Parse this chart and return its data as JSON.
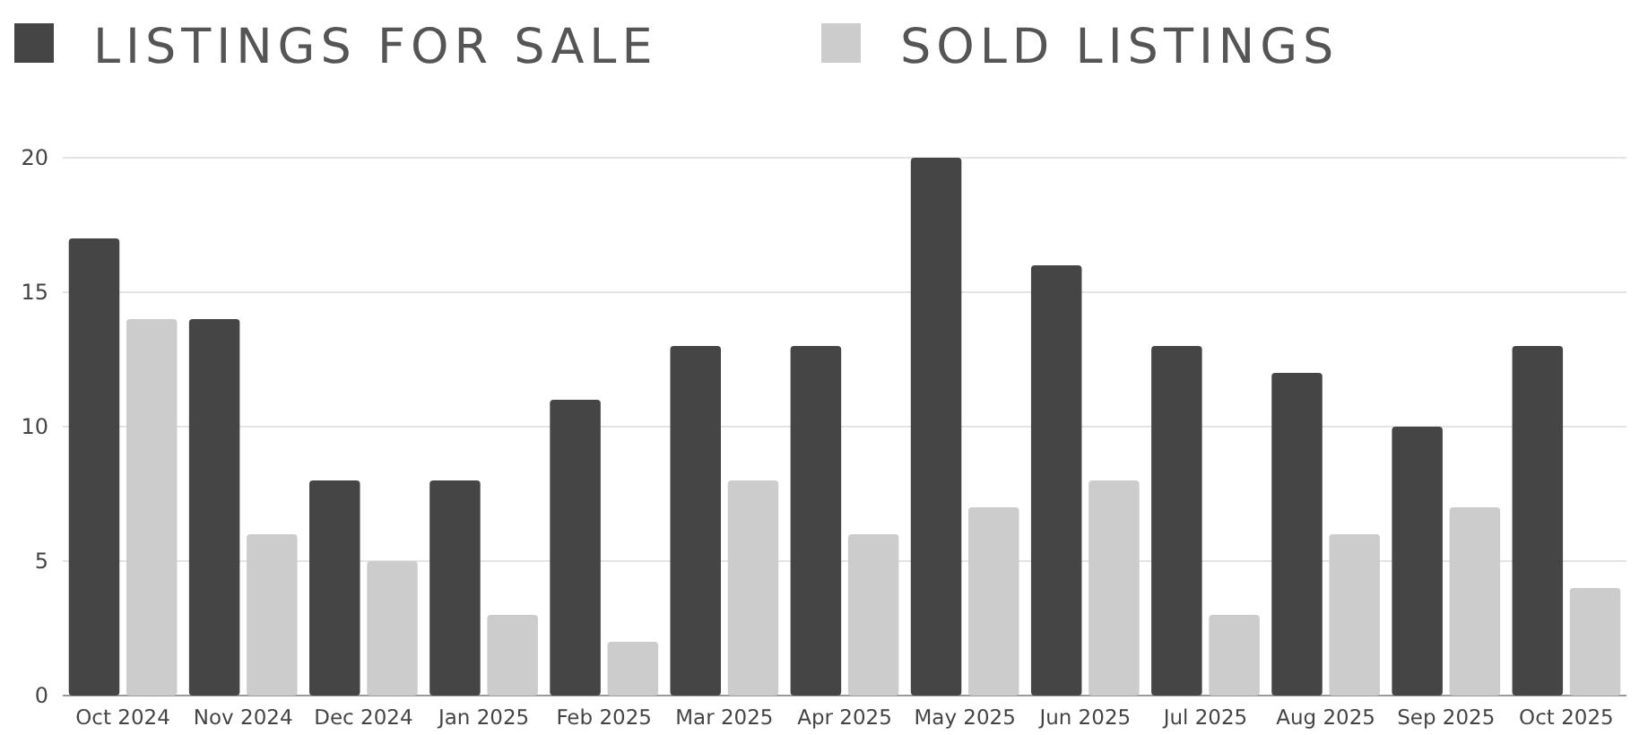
{
  "chart_data": {
    "type": "bar",
    "categories": [
      "Oct 2024",
      "Nov 2024",
      "Dec 2024",
      "Jan 2025",
      "Feb 2025",
      "Mar 2025",
      "Apr 2025",
      "May 2025",
      "Jun 2025",
      "Jul 2025",
      "Aug 2025",
      "Sep 2025",
      "Oct 2025"
    ],
    "series": [
      {
        "name": "LISTINGS FOR SALE",
        "color": "#454545",
        "values": [
          17,
          14,
          8,
          8,
          11,
          13,
          13,
          20,
          16,
          13,
          12,
          10,
          13
        ]
      },
      {
        "name": "SOLD LISTINGS",
        "color": "#cccccc",
        "values": [
          14,
          6,
          5,
          3,
          2,
          8,
          6,
          7,
          8,
          3,
          6,
          7,
          4
        ]
      }
    ],
    "ylim": [
      0,
      20
    ],
    "yticks": [
      0,
      5,
      10,
      15,
      20
    ],
    "grid": "y",
    "legend": "top left"
  }
}
